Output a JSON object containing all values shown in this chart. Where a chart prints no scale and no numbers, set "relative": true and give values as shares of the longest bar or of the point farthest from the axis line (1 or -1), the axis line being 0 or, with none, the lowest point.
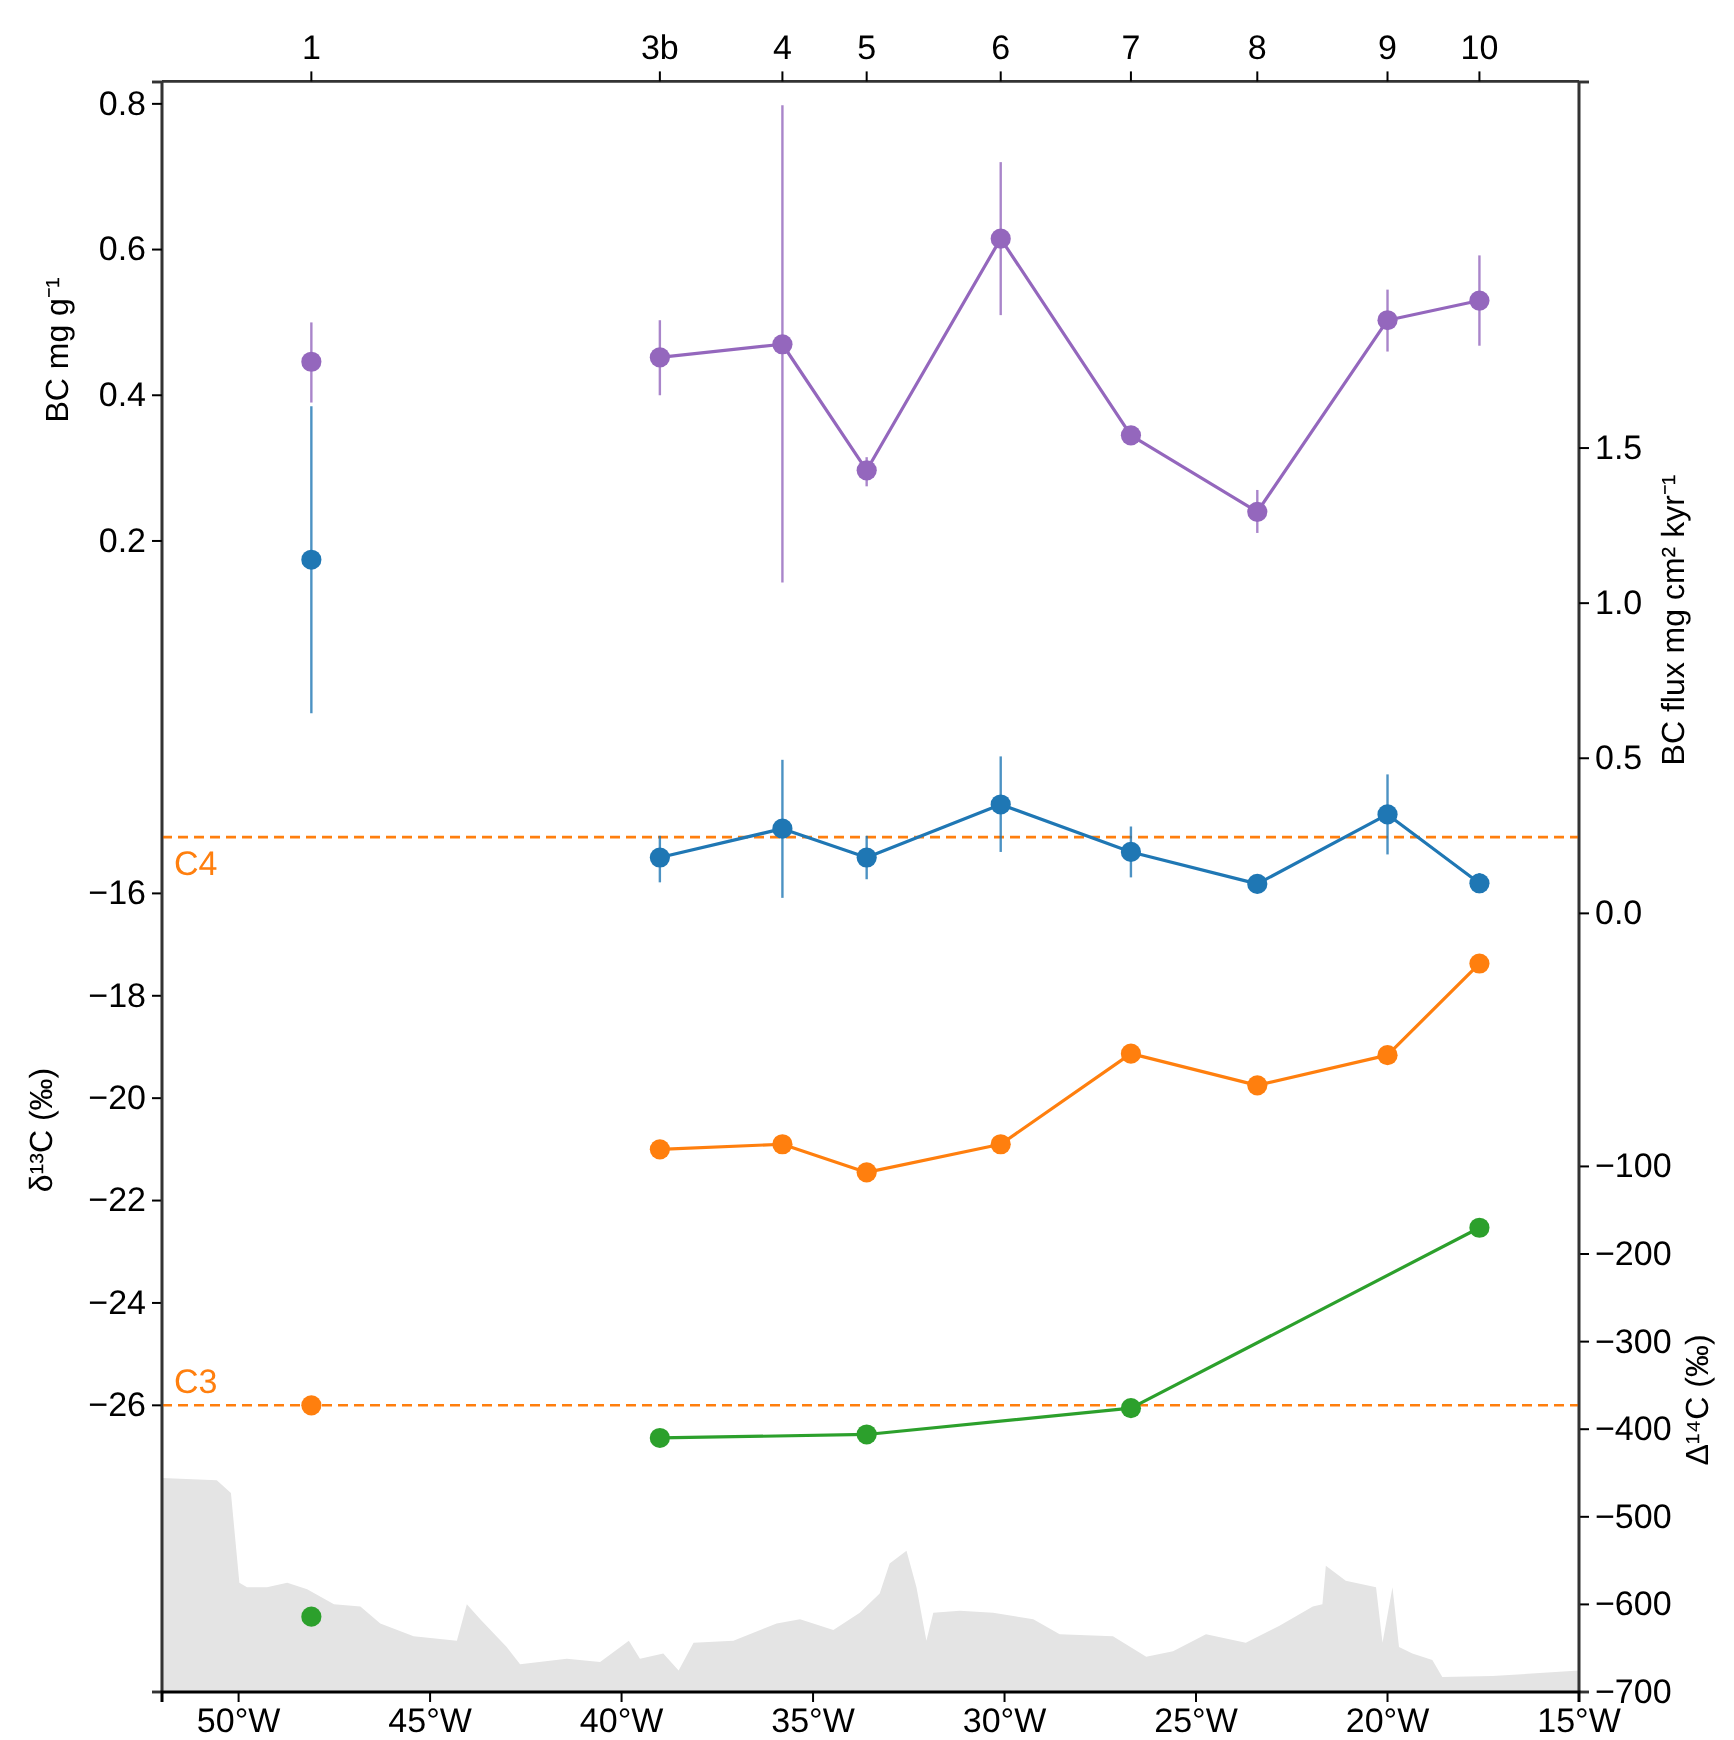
{
  "chart_data": [
    {
      "type": "line",
      "ylabel": "BC mg g⁻¹",
      "y2label": "BC flux mg cm² kyr⁻¹",
      "xlim": [
        -52,
        -15
      ],
      "xticks": [
        {
          "value": -50,
          "label": "50°W"
        },
        {
          "value": -45,
          "label": "45°W"
        },
        {
          "value": -40,
          "label": "40°W"
        },
        {
          "value": -35,
          "label": "35°W"
        },
        {
          "value": -30,
          "label": "30°W"
        },
        {
          "value": -25,
          "label": "25°W"
        },
        {
          "value": -20,
          "label": "20°W"
        },
        {
          "value": -15,
          "label": "15°W"
        }
      ],
      "annotations": [
        {
          "text": "1",
          "x": -48.1
        },
        {
          "text": "3b",
          "x": -39.0
        },
        {
          "text": "4",
          "x": -35.8
        },
        {
          "text": "5",
          "x": -33.6
        },
        {
          "text": "6",
          "x": -30.1
        },
        {
          "text": "7",
          "x": -26.7
        },
        {
          "text": "8",
          "x": -23.4
        },
        {
          "text": "9",
          "x": -20.0
        },
        {
          "text": "10",
          "x": -17.6
        }
      ],
      "ylim": [
        -1.38,
        0.83
      ],
      "yticks": [
        0.2,
        0.4,
        0.6,
        0.8
      ],
      "y2lim": [
        -2.51,
        2.68
      ],
      "y2ticks": [
        {
          "value": 0,
          "label": "0.0"
        },
        0.5,
        {
          "value": 1,
          "label": "1.0"
        },
        1.5
      ],
      "marker": "circle",
      "series": [
        {
          "type": "scatter",
          "color": "#9467bd",
          "x": [
            -48.1
          ],
          "values": [
            0.446
          ],
          "errors": [
            [
              0.39,
              0.5
            ]
          ]
        },
        {
          "color": "#9467bd",
          "x": [
            -39.0,
            -35.8,
            -33.6,
            -30.1,
            -26.7,
            -23.4,
            -20.0,
            -17.6
          ],
          "values": [
            0.452,
            0.47,
            0.297,
            0.615,
            0.345,
            0.24,
            0.503,
            0.53
          ],
          "errors": [
            [
              0.4,
              0.503
            ],
            [
              0.143,
              0.798
            ],
            [
              0.275,
              0.315
            ],
            [
              0.51,
              0.72
            ],
            [
              0.335,
              0.355
            ],
            [
              0.211,
              0.27
            ],
            [
              0.46,
              0.545
            ],
            [
              0.468,
              0.592
            ]
          ]
        },
        {
          "type": "scatter",
          "axis": "y2",
          "color": "#1f77b4",
          "x": [
            -48.1
          ],
          "values": [
            1.14
          ],
          "errors": [
            [
              0.645,
              1.635
            ]
          ]
        },
        {
          "axis": "y2",
          "color": "#1f77b4",
          "x": [
            -39.0,
            -35.8,
            -33.6,
            -30.1,
            -26.7,
            -23.4,
            -20.0,
            -17.6
          ],
          "values": [
            0.18,
            0.273,
            0.18,
            0.351,
            0.198,
            0.095,
            0.319,
            0.097
          ],
          "errors": [
            [
              0.1,
              0.25
            ],
            [
              0.05,
              0.495
            ],
            [
              0.11,
              0.25
            ],
            [
              0.198,
              0.506
            ],
            [
              0.116,
              0.28
            ],
            [
              0.065,
              0.125
            ],
            [
              0.19,
              0.448
            ],
            [
              0.065,
              0.13
            ]
          ]
        }
      ]
    },
    {
      "type": "line",
      "ylabel": "δ¹³C (‰)",
      "y2label": "Δ¹⁴C (‰)",
      "tick_labels": "y",
      "xlim": [
        -52,
        -15
      ],
      "ylim": [
        -31.6,
        -0.15
      ],
      "yticks": [
        {
          "value": -26,
          "label": "−26"
        },
        {
          "value": -24,
          "label": "−24"
        },
        {
          "value": -22,
          "label": "−22"
        },
        {
          "value": -20,
          "label": "−20"
        },
        {
          "value": -18,
          "label": "−18"
        },
        {
          "value": -16,
          "label": "−16"
        }
      ],
      "y2lim": [
        -700,
        1138
      ],
      "y2ticks": [
        {
          "value": -700,
          "label": "−700"
        },
        {
          "value": -600,
          "label": "−600"
        },
        {
          "value": -500,
          "label": "−500"
        },
        {
          "value": -400,
          "label": "−400"
        },
        {
          "value": -300,
          "label": "−300"
        },
        {
          "value": -200,
          "label": "−200"
        },
        {
          "value": -100,
          "label": "−100"
        }
      ],
      "marker": "circle",
      "ref_lines": [
        {
          "axis": "y",
          "value": -14.9,
          "label": "C4",
          "color": "#ff7f0e",
          "line_style": "dashed"
        },
        {
          "axis": "y",
          "value": -26,
          "label": "C3",
          "color": "#ff7f0e",
          "line_style": "dashed"
        }
      ],
      "series": [
        {
          "type": "scatter",
          "color": "#ff7f0e",
          "x": [
            -48.1
          ],
          "values": [
            -26.0
          ]
        },
        {
          "color": "#ff7f0e",
          "x": [
            -39.0,
            -35.8,
            -33.6,
            -30.1,
            -26.7,
            -23.4,
            -20.0,
            -17.6
          ],
          "values": [
            -21.0,
            -20.9,
            -21.45,
            -20.9,
            -19.13,
            -19.75,
            -19.16,
            -17.37
          ]
        },
        {
          "type": "scatter",
          "axis": "y2",
          "color": "#2ca02c",
          "x": [
            -48.1
          ],
          "values": [
            -614
          ]
        },
        {
          "axis": "y2",
          "color": "#2ca02c",
          "x": [
            -39.0,
            -33.6,
            -26.7,
            -17.6
          ],
          "values": [
            -410,
            -406,
            -376,
            -170
          ]
        }
      ]
    },
    {
      "type": "area",
      "relative": true,
      "tick_labels": false,
      "xlim": [
        -52,
        -15
      ],
      "color": "#e4e4e4",
      "x": [
        -52,
        -50.57,
        -50.2,
        -49.98,
        -49.78,
        -49.26,
        -48.73,
        -48.21,
        -47.51,
        -46.82,
        -46.3,
        -45.43,
        -44.3,
        -44.04,
        -43.69,
        -43.0,
        -42.65,
        -41.43,
        -40.56,
        -39.81,
        -39.52,
        -38.91,
        -38.51,
        -38.12,
        -37.08,
        -35.95,
        -35.34,
        -34.47,
        -33.78,
        -33.26,
        -33.0,
        -32.56,
        -32.3,
        -32.04,
        -31.86,
        -31.17,
        -30.3,
        -29.25,
        -28.56,
        -27.17,
        -26.3,
        -25.6,
        -24.74,
        -23.7,
        -22.82,
        -21.95,
        -21.7,
        -21.61,
        -21.09,
        -20.3,
        -20.13,
        -19.87,
        -19.7,
        -19.35,
        -18.83,
        -18.57,
        -17.26,
        -15
      ],
      "values": [
        1.0,
        0.99,
        0.93,
        0.51,
        0.49,
        0.49,
        0.51,
        0.48,
        0.41,
        0.4,
        0.32,
        0.26,
        0.24,
        0.41,
        0.34,
        0.21,
        0.13,
        0.155,
        0.14,
        0.24,
        0.155,
        0.18,
        0.1,
        0.23,
        0.24,
        0.32,
        0.34,
        0.29,
        0.37,
        0.46,
        0.6,
        0.66,
        0.49,
        0.24,
        0.37,
        0.38,
        0.37,
        0.34,
        0.27,
        0.26,
        0.165,
        0.19,
        0.27,
        0.23,
        0.31,
        0.4,
        0.41,
        0.59,
        0.52,
        0.49,
        0.23,
        0.49,
        0.21,
        0.18,
        0.15,
        0.07,
        0.075,
        0.1
      ]
    }
  ]
}
